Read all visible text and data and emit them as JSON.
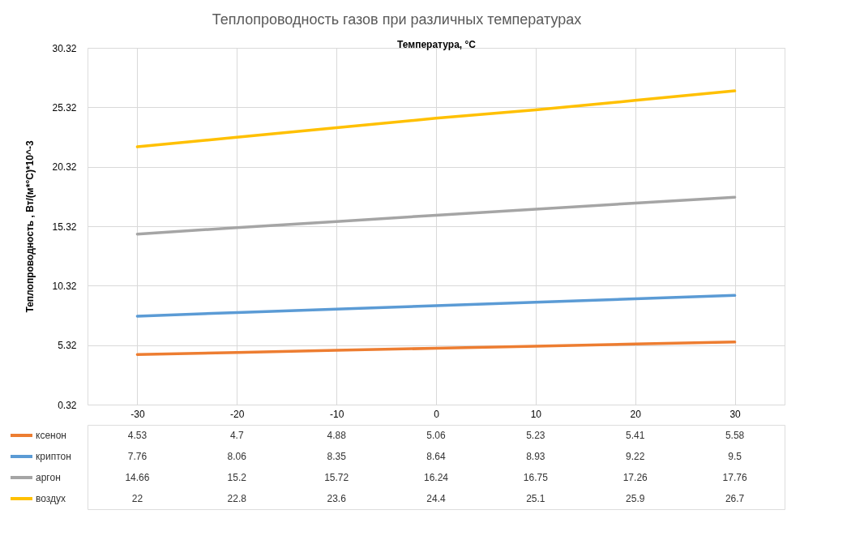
{
  "chart_data": {
    "type": "line",
    "title": "Теплопроводность газов при различных температурах",
    "xlabel": "Температура, °C",
    "ylabel": "Теплопроводность , Вт/(м*°С)*10^-3",
    "categories": [
      "-30",
      "-20",
      "-10",
      "0",
      "10",
      "20",
      "30"
    ],
    "series": [
      {
        "name": "ксенон",
        "color": "#ed7d31",
        "values": [
          4.53,
          4.7,
          4.88,
          5.06,
          5.23,
          5.41,
          5.58
        ]
      },
      {
        "name": "криптон",
        "color": "#5b9bd5",
        "values": [
          7.76,
          8.06,
          8.35,
          8.64,
          8.93,
          9.22,
          9.5
        ]
      },
      {
        "name": "аргон",
        "color": "#a5a5a5",
        "values": [
          14.66,
          15.2,
          15.72,
          16.24,
          16.75,
          17.26,
          17.76
        ]
      },
      {
        "name": "воздух",
        "color": "#ffc000",
        "values": [
          22,
          22.8,
          23.6,
          24.4,
          25.1,
          25.9,
          26.7
        ]
      }
    ],
    "ylim": [
      0.32,
      30.32
    ],
    "yticks": [
      0.32,
      5.32,
      10.32,
      15.32,
      20.32,
      25.32,
      30.32
    ],
    "grid": true,
    "legend": "bottom",
    "data_labels": true,
    "marker": "none",
    "line_style": "solid"
  }
}
